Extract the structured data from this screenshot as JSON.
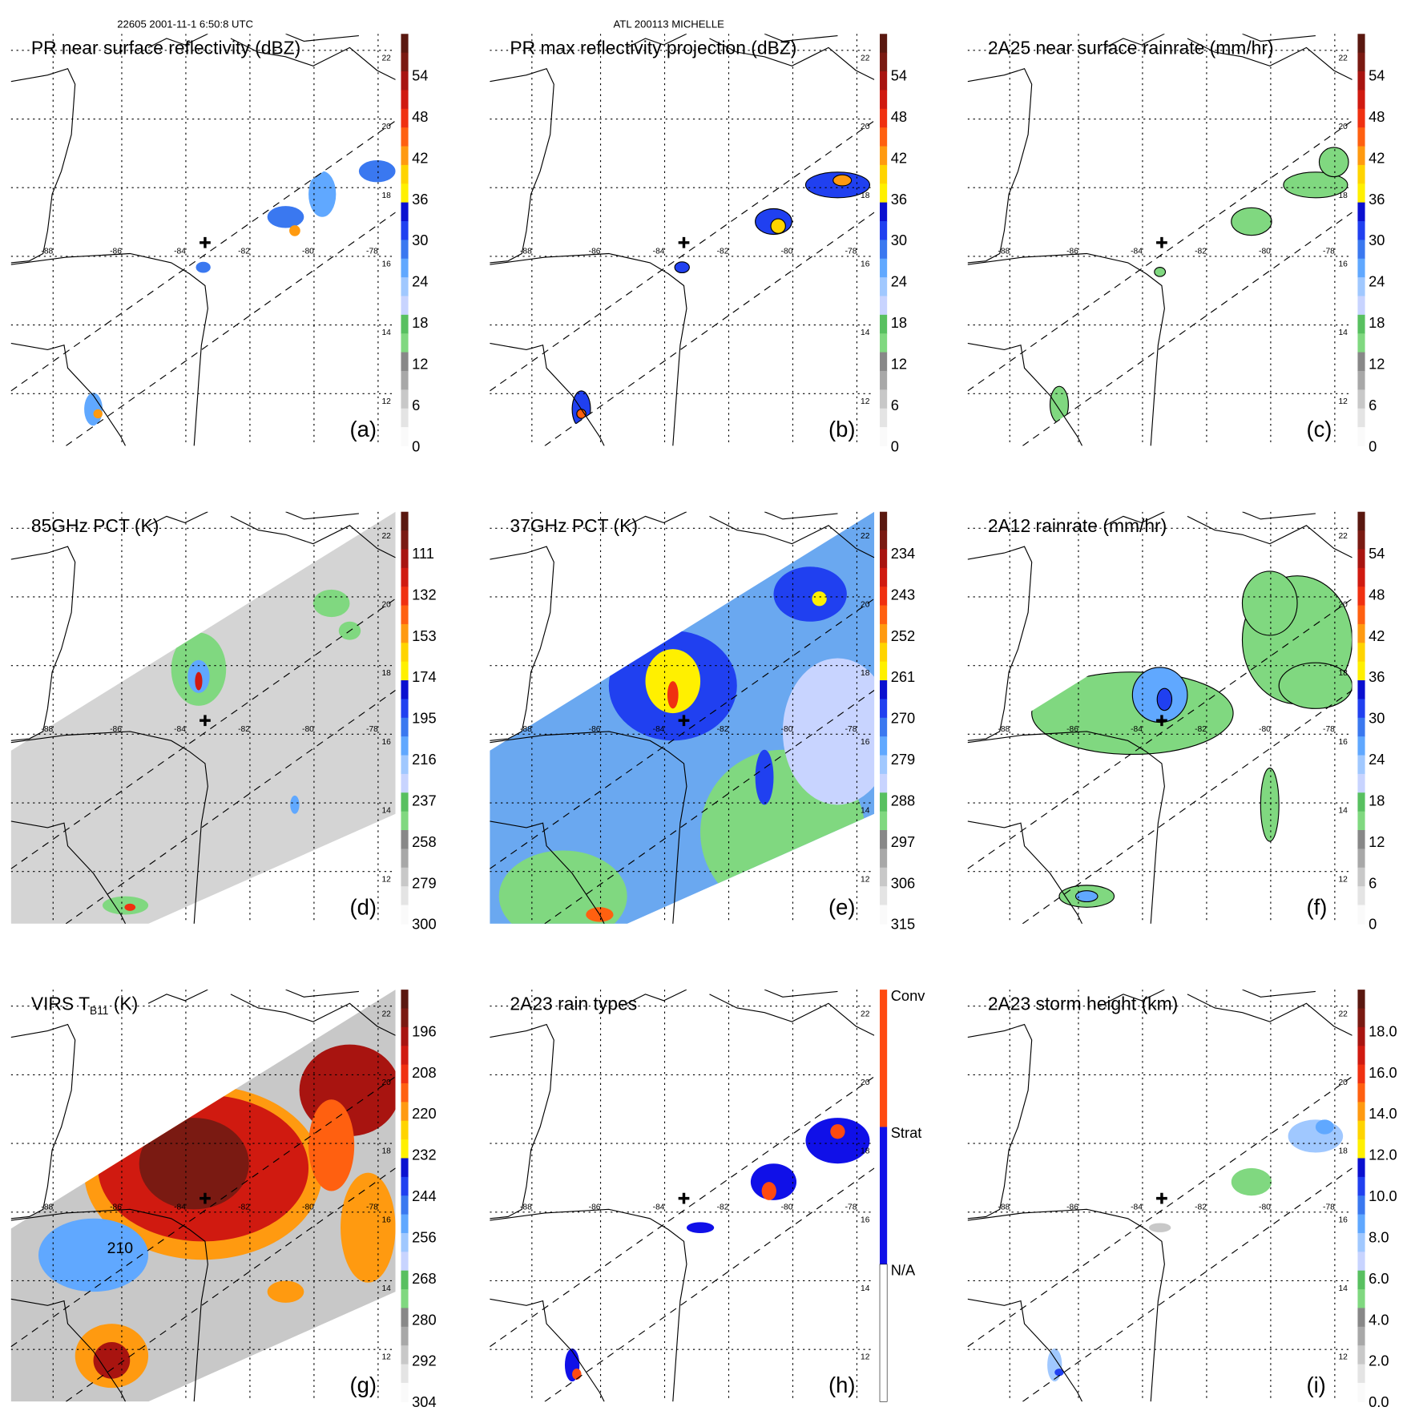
{
  "header": {
    "left": "22605 2001-11-1 6:50:8 UTC",
    "center": "ATL 200113 MICHELLE"
  },
  "grid": {
    "lon_labels": [
      "-88",
      "-86",
      "-84",
      "-82",
      "-80",
      "-78"
    ],
    "lat_labels": [
      "12",
      "14",
      "16",
      "18",
      "20",
      "22"
    ]
  },
  "storm_center_marker": "plus-icon",
  "panels": [
    {
      "title": "PR near surface reflectivity (dBZ)",
      "letter": "(a)",
      "cbar_labels": [
        "54",
        "48",
        "42",
        "36",
        "30",
        "24",
        "18",
        "12",
        "6",
        "0"
      ]
    },
    {
      "title": "PR max reflectivity projection (dBZ)",
      "letter": "(b)",
      "cbar_labels": [
        "54",
        "48",
        "42",
        "36",
        "30",
        "24",
        "18",
        "12",
        "6",
        "0"
      ]
    },
    {
      "title": "2A25 near surface rainrate (mm/hr)",
      "letter": "(c)",
      "cbar_labels": [
        "54",
        "48",
        "42",
        "36",
        "30",
        "24",
        "18",
        "12",
        "6",
        "0"
      ]
    },
    {
      "title": "85GHz PCT (K)",
      "letter": "(d)",
      "cbar_labels": [
        "111",
        "132",
        "153",
        "174",
        "195",
        "216",
        "237",
        "258",
        "279",
        "300"
      ]
    },
    {
      "title": "37GHz PCT (K)",
      "letter": "(e)",
      "cbar_labels": [
        "234",
        "243",
        "252",
        "261",
        "270",
        "279",
        "288",
        "297",
        "306",
        "315"
      ]
    },
    {
      "title": "2A12 rainrate (mm/hr)",
      "letter": "(f)",
      "cbar_labels": [
        "54",
        "48",
        "42",
        "36",
        "30",
        "24",
        "18",
        "12",
        "6",
        "0"
      ]
    },
    {
      "title": "VIRS T",
      "title_sub": "B11",
      "title_suffix": " (K)",
      "letter": "(g)",
      "annotation": "210",
      "cbar_labels": [
        "196",
        "208",
        "220",
        "232",
        "244",
        "256",
        "268",
        "280",
        "292",
        "304"
      ]
    },
    {
      "title": "2A23 rain types",
      "letter": "(h)",
      "cbar_labels": [
        "Conv",
        "Strat",
        "N/A"
      ]
    },
    {
      "title": "2A23 storm height (km)",
      "letter": "(i)",
      "cbar_labels": [
        "18.0",
        "16.0",
        "14.0",
        "12.0",
        "10.0",
        "8.0",
        "6.0",
        "4.0",
        "2.0",
        "0.0"
      ]
    }
  ],
  "colors": {
    "scale": [
      "#5a1810",
      "#7a1a12",
      "#a81410",
      "#d01a10",
      "#f03010",
      "#ff6010",
      "#ff9a10",
      "#ffd400",
      "#fff000",
      "#0a10d0",
      "#2040f0",
      "#3a78f0",
      "#60a8ff",
      "#a0c8ff",
      "#c8d4ff",
      "#58c060",
      "#80d880",
      "#888888",
      "#a8a8a8",
      "#c8c8c8",
      "#e4e4e4",
      "#fafafa"
    ],
    "rain_types": [
      "#ff4a10",
      "#1010e8",
      "#ffffff"
    ]
  }
}
